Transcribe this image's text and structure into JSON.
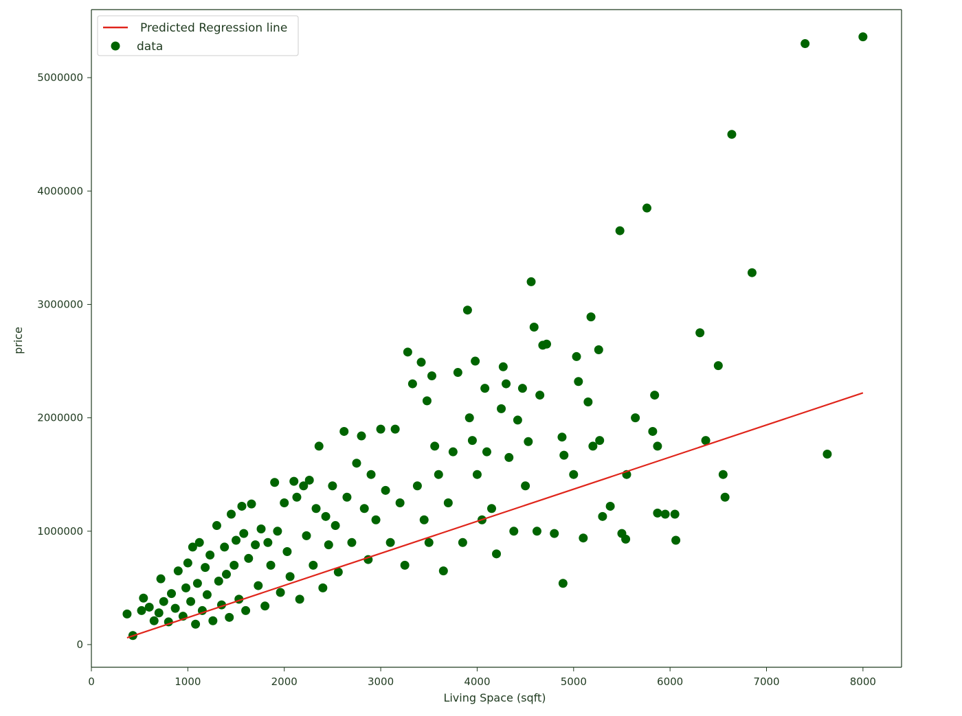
{
  "chart_data": {
    "type": "scatter",
    "title": "",
    "xlabel": "Living Space (sqft)",
    "ylabel": "price",
    "xlim": [
      0,
      8400
    ],
    "ylim": [
      -200000,
      5600000
    ],
    "x_ticks": [
      0,
      1000,
      2000,
      3000,
      4000,
      5000,
      6000,
      7000,
      8000
    ],
    "y_ticks": [
      0,
      1000000,
      2000000,
      3000000,
      4000000,
      5000000
    ],
    "x_tick_labels": [
      "0",
      "1000",
      "2000",
      "3000",
      "4000",
      "5000",
      "6000",
      "7000",
      "8000"
    ],
    "y_tick_labels": [
      "0",
      "1000000",
      "2000000",
      "3000000",
      "4000000",
      "5000000"
    ],
    "grid": false,
    "legend_position": "top-left",
    "legend": [
      "Predicted Regression line",
      "data"
    ],
    "colors": {
      "data": "#006400",
      "line": "#e0251b",
      "axis_text": "#1f3a1f"
    },
    "series": [
      {
        "name": "Predicted Regression line",
        "kind": "line",
        "points": [
          [
            370,
            60000
          ],
          [
            8000,
            2220000
          ]
        ]
      },
      {
        "name": "data",
        "kind": "scatter",
        "points": [
          [
            370,
            270000
          ],
          [
            430,
            80000
          ],
          [
            520,
            300000
          ],
          [
            540,
            410000
          ],
          [
            600,
            330000
          ],
          [
            650,
            210000
          ],
          [
            700,
            280000
          ],
          [
            720,
            580000
          ],
          [
            750,
            380000
          ],
          [
            800,
            200000
          ],
          [
            830,
            450000
          ],
          [
            870,
            320000
          ],
          [
            900,
            650000
          ],
          [
            950,
            250000
          ],
          [
            980,
            500000
          ],
          [
            1000,
            720000
          ],
          [
            1030,
            380000
          ],
          [
            1050,
            860000
          ],
          [
            1080,
            180000
          ],
          [
            1100,
            540000
          ],
          [
            1120,
            900000
          ],
          [
            1150,
            300000
          ],
          [
            1180,
            680000
          ],
          [
            1200,
            440000
          ],
          [
            1230,
            790000
          ],
          [
            1260,
            210000
          ],
          [
            1300,
            1050000
          ],
          [
            1320,
            560000
          ],
          [
            1350,
            350000
          ],
          [
            1380,
            860000
          ],
          [
            1400,
            620000
          ],
          [
            1430,
            240000
          ],
          [
            1450,
            1150000
          ],
          [
            1480,
            700000
          ],
          [
            1500,
            920000
          ],
          [
            1530,
            400000
          ],
          [
            1560,
            1220000
          ],
          [
            1580,
            980000
          ],
          [
            1600,
            300000
          ],
          [
            1630,
            760000
          ],
          [
            1660,
            1240000
          ],
          [
            1700,
            880000
          ],
          [
            1730,
            520000
          ],
          [
            1760,
            1020000
          ],
          [
            1800,
            340000
          ],
          [
            1830,
            900000
          ],
          [
            1860,
            700000
          ],
          [
            1900,
            1430000
          ],
          [
            1930,
            1000000
          ],
          [
            1960,
            460000
          ],
          [
            2000,
            1250000
          ],
          [
            2030,
            820000
          ],
          [
            2060,
            600000
          ],
          [
            2100,
            1440000
          ],
          [
            2130,
            1300000
          ],
          [
            2160,
            400000
          ],
          [
            2200,
            1400000
          ],
          [
            2230,
            960000
          ],
          [
            2260,
            1450000
          ],
          [
            2300,
            700000
          ],
          [
            2330,
            1200000
          ],
          [
            2360,
            1750000
          ],
          [
            2400,
            500000
          ],
          [
            2430,
            1130000
          ],
          [
            2460,
            880000
          ],
          [
            2500,
            1400000
          ],
          [
            2530,
            1050000
          ],
          [
            2560,
            640000
          ],
          [
            2620,
            1880000
          ],
          [
            2650,
            1300000
          ],
          [
            2700,
            900000
          ],
          [
            2750,
            1600000
          ],
          [
            2800,
            1840000
          ],
          [
            2830,
            1200000
          ],
          [
            2870,
            750000
          ],
          [
            2900,
            1500000
          ],
          [
            2950,
            1100000
          ],
          [
            3000,
            1900000
          ],
          [
            3050,
            1360000
          ],
          [
            3100,
            900000
          ],
          [
            3150,
            1900000
          ],
          [
            3200,
            1250000
          ],
          [
            3250,
            700000
          ],
          [
            3280,
            2580000
          ],
          [
            3330,
            2300000
          ],
          [
            3380,
            1400000
          ],
          [
            3420,
            2490000
          ],
          [
            3450,
            1100000
          ],
          [
            3480,
            2150000
          ],
          [
            3500,
            900000
          ],
          [
            3530,
            2370000
          ],
          [
            3560,
            1750000
          ],
          [
            3600,
            1500000
          ],
          [
            3650,
            650000
          ],
          [
            3700,
            1250000
          ],
          [
            3750,
            1700000
          ],
          [
            3800,
            2400000
          ],
          [
            3850,
            900000
          ],
          [
            3900,
            2950000
          ],
          [
            3920,
            2000000
          ],
          [
            3950,
            1800000
          ],
          [
            3980,
            2500000
          ],
          [
            4000,
            1500000
          ],
          [
            4050,
            1100000
          ],
          [
            4080,
            2260000
          ],
          [
            4100,
            1700000
          ],
          [
            4150,
            1200000
          ],
          [
            4200,
            800000
          ],
          [
            4250,
            2080000
          ],
          [
            4270,
            2450000
          ],
          [
            4300,
            2300000
          ],
          [
            4330,
            1650000
          ],
          [
            4380,
            1000000
          ],
          [
            4420,
            1980000
          ],
          [
            4470,
            2260000
          ],
          [
            4500,
            1400000
          ],
          [
            4530,
            1790000
          ],
          [
            4560,
            3200000
          ],
          [
            4590,
            2800000
          ],
          [
            4620,
            1000000
          ],
          [
            4650,
            2200000
          ],
          [
            4680,
            2640000
          ],
          [
            4720,
            2650000
          ],
          [
            4800,
            980000
          ],
          [
            4880,
            1830000
          ],
          [
            4890,
            540000
          ],
          [
            4900,
            1670000
          ],
          [
            5000,
            1500000
          ],
          [
            5030,
            2540000
          ],
          [
            5050,
            2320000
          ],
          [
            5100,
            940000
          ],
          [
            5150,
            2140000
          ],
          [
            5180,
            2890000
          ],
          [
            5200,
            1750000
          ],
          [
            5260,
            2600000
          ],
          [
            5270,
            1800000
          ],
          [
            5300,
            1130000
          ],
          [
            5380,
            1220000
          ],
          [
            5480,
            3650000
          ],
          [
            5500,
            980000
          ],
          [
            5540,
            930000
          ],
          [
            5550,
            1500000
          ],
          [
            5640,
            2000000
          ],
          [
            5760,
            3850000
          ],
          [
            5820,
            1880000
          ],
          [
            5840,
            2200000
          ],
          [
            5870,
            1750000
          ],
          [
            5870,
            1160000
          ],
          [
            5950,
            1150000
          ],
          [
            6050,
            1150000
          ],
          [
            6060,
            920000
          ],
          [
            6310,
            2750000
          ],
          [
            6370,
            1800000
          ],
          [
            6500,
            2460000
          ],
          [
            6550,
            1500000
          ],
          [
            6570,
            1300000
          ],
          [
            6640,
            4500000
          ],
          [
            6850,
            3280000
          ],
          [
            7400,
            5300000
          ],
          [
            7630,
            1680000
          ],
          [
            8000,
            5360000
          ]
        ]
      }
    ]
  }
}
